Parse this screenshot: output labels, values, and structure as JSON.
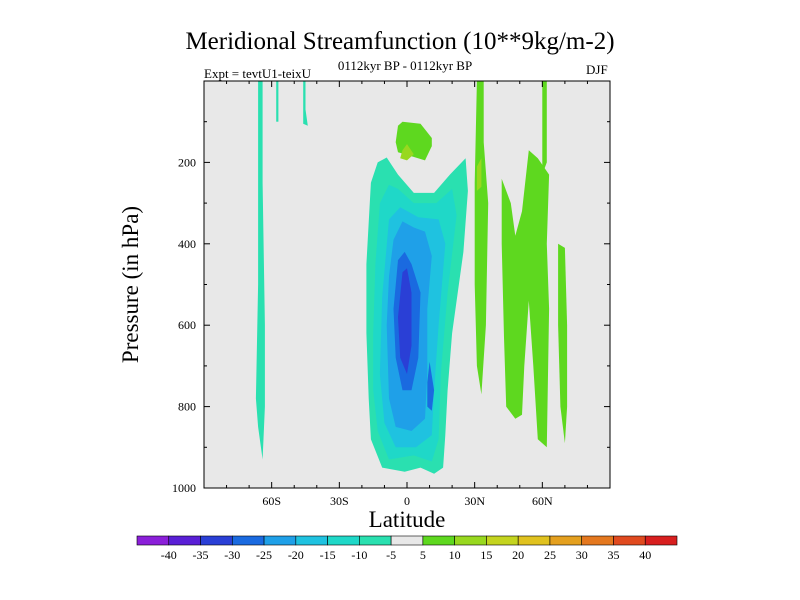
{
  "title": "Meridional Streamfunction (10**9kg/m-2)",
  "subtitle": "0112kyr BP - 0112kyr BP",
  "left_string": "Expt = tevtU1-teixU",
  "right_string": "DJF",
  "chart_data": {
    "type": "contour",
    "title": "Meridional Streamfunction (10**9kg/m-2)",
    "xlabel": "Latitude",
    "ylabel": "Pressure (in hPa)",
    "xlim": [
      -90,
      90
    ],
    "ylim": [
      1000,
      0
    ],
    "xticks": [
      {
        "value": -60,
        "label": "60S"
      },
      {
        "value": -30,
        "label": "30S"
      },
      {
        "value": 0,
        "label": "0"
      },
      {
        "value": 30,
        "label": "30N"
      },
      {
        "value": 60,
        "label": "60N"
      }
    ],
    "yticks": [
      {
        "value": 200,
        "label": "200"
      },
      {
        "value": 400,
        "label": "400"
      },
      {
        "value": 600,
        "label": "600"
      },
      {
        "value": 800,
        "label": "800"
      },
      {
        "value": 1000,
        "label": "1000"
      }
    ],
    "background_color": "#e8e8e8",
    "colorbar": {
      "levels": [
        -40,
        -35,
        -30,
        -25,
        -20,
        -15,
        -10,
        -5,
        5,
        10,
        15,
        20,
        25,
        30,
        35,
        40
      ],
      "colors": [
        "#8b1fd9",
        "#5a1fd6",
        "#2a3fd6",
        "#1a6ae0",
        "#1fa0e8",
        "#1fc2e0",
        "#1fd8c8",
        "#2ae0b0",
        "#e8e8e8",
        "#5ed81f",
        "#98d81f",
        "#c4d41f",
        "#e0c21f",
        "#e4a01f",
        "#e4781f",
        "#e04a1f",
        "#d81f1f"
      ]
    },
    "regions": [
      {
        "name": "neg-5-sh-strip",
        "level": -5,
        "points": [
          [
            -66,
            0
          ],
          [
            -64,
            0
          ],
          [
            -64,
            250
          ],
          [
            -63,
            600
          ],
          [
            -63,
            800
          ],
          [
            -64,
            930
          ],
          [
            -66,
            850
          ],
          [
            -67,
            780
          ],
          [
            -66,
            500
          ]
        ]
      },
      {
        "name": "neg-5-sh-thin",
        "level": -5,
        "points": [
          [
            -58,
            0
          ],
          [
            -57,
            0
          ],
          [
            -57,
            100
          ],
          [
            -58,
            100
          ]
        ]
      },
      {
        "name": "neg-5-sh-short",
        "level": -5,
        "points": [
          [
            -46,
            0
          ],
          [
            -45,
            0
          ],
          [
            -45,
            70
          ],
          [
            -44,
            110
          ],
          [
            -46,
            105
          ]
        ]
      },
      {
        "name": "neg-5-main-cell",
        "level": -5,
        "points": [
          [
            -16,
            250
          ],
          [
            -13,
            200
          ],
          [
            -9,
            188
          ],
          [
            -4,
            230
          ],
          [
            3,
            275
          ],
          [
            12,
            275
          ],
          [
            19,
            230
          ],
          [
            26,
            190
          ],
          [
            27,
            270
          ],
          [
            25,
            420
          ],
          [
            20,
            620
          ],
          [
            18,
            760
          ],
          [
            17,
            870
          ],
          [
            16,
            950
          ],
          [
            12,
            965
          ],
          [
            6,
            950
          ],
          [
            -1,
            960
          ],
          [
            -11,
            950
          ],
          [
            -16,
            880
          ],
          [
            -17,
            780
          ],
          [
            -18,
            620
          ],
          [
            -18,
            450
          ]
        ]
      },
      {
        "name": "neg-10",
        "level": -10,
        "points": [
          [
            -12,
            300
          ],
          [
            -8,
            255
          ],
          [
            -4,
            265
          ],
          [
            3,
            300
          ],
          [
            13,
            300
          ],
          [
            20,
            265
          ],
          [
            22,
            330
          ],
          [
            18,
            520
          ],
          [
            15,
            720
          ],
          [
            14,
            880
          ],
          [
            11,
            935
          ],
          [
            3,
            920
          ],
          [
            -8,
            930
          ],
          [
            -13,
            860
          ],
          [
            -15,
            760
          ],
          [
            -15,
            620
          ],
          [
            -14,
            450
          ]
        ]
      },
      {
        "name": "neg-15",
        "level": -15,
        "points": [
          [
            -8,
            340
          ],
          [
            -3,
            310
          ],
          [
            5,
            335
          ],
          [
            14,
            340
          ],
          [
            17,
            400
          ],
          [
            14,
            600
          ],
          [
            12,
            760
          ],
          [
            11,
            870
          ],
          [
            4,
            900
          ],
          [
            -5,
            900
          ],
          [
            -10,
            840
          ],
          [
            -12,
            720
          ],
          [
            -11,
            530
          ]
        ]
      },
      {
        "name": "neg-20",
        "level": -20,
        "points": [
          [
            -6,
            390
          ],
          [
            -2,
            345
          ],
          [
            3,
            360
          ],
          [
            8,
            370
          ],
          [
            11,
            430
          ],
          [
            9,
            560
          ],
          [
            9,
            720
          ],
          [
            8,
            830
          ],
          [
            2,
            860
          ],
          [
            -5,
            850
          ],
          [
            -8,
            780
          ],
          [
            -9,
            600
          ],
          [
            -8,
            480
          ]
        ]
      },
      {
        "name": "neg-25",
        "level": -25,
        "points": [
          [
            -4,
            440
          ],
          [
            -1,
            420
          ],
          [
            2,
            450
          ],
          [
            6,
            520
          ],
          [
            5,
            680
          ],
          [
            2,
            760
          ],
          [
            -2,
            760
          ],
          [
            -5,
            680
          ],
          [
            -6,
            560
          ]
        ]
      },
      {
        "name": "neg-25-lower",
        "level": -25,
        "points": [
          [
            10,
            690
          ],
          [
            12,
            760
          ],
          [
            11,
            810
          ],
          [
            9,
            800
          ],
          [
            9,
            740
          ]
        ]
      },
      {
        "name": "neg-30",
        "level": -30,
        "points": [
          [
            -2,
            470
          ],
          [
            0,
            460
          ],
          [
            2,
            520
          ],
          [
            2,
            650
          ],
          [
            0,
            720
          ],
          [
            -3,
            680
          ],
          [
            -4,
            580
          ]
        ]
      },
      {
        "name": "pos-5-upper",
        "level": 5,
        "points": [
          [
            -4,
            110
          ],
          [
            -2,
            100
          ],
          [
            6,
            105
          ],
          [
            11,
            140
          ],
          [
            11,
            160
          ],
          [
            8,
            195
          ],
          [
            2,
            185
          ],
          [
            -4,
            175
          ],
          [
            -5,
            150
          ]
        ]
      },
      {
        "name": "pos-10-upper",
        "level": 10,
        "points": [
          [
            -2,
            170
          ],
          [
            0,
            155
          ],
          [
            3,
            180
          ],
          [
            0,
            195
          ],
          [
            -3,
            190
          ]
        ]
      },
      {
        "name": "pos-5-30n-strip",
        "level": 5,
        "points": [
          [
            31,
            0
          ],
          [
            34,
            0
          ],
          [
            34,
            150
          ],
          [
            36,
            300
          ],
          [
            35,
            600
          ],
          [
            33,
            770
          ],
          [
            31,
            700
          ],
          [
            30,
            500
          ],
          [
            30,
            250
          ]
        ]
      },
      {
        "name": "pos-10-30n",
        "level": 10,
        "points": [
          [
            31,
            210
          ],
          [
            33,
            190
          ],
          [
            33,
            260
          ],
          [
            31,
            270
          ]
        ]
      },
      {
        "name": "pos-5-40n",
        "level": 5,
        "points": [
          [
            42,
            240
          ],
          [
            46,
            300
          ],
          [
            48,
            380
          ],
          [
            51,
            320
          ],
          [
            54,
            170
          ],
          [
            58,
            190
          ],
          [
            63,
            230
          ],
          [
            62,
            400
          ],
          [
            63,
            560
          ],
          [
            62,
            900
          ],
          [
            58,
            880
          ],
          [
            56,
            700
          ],
          [
            54,
            540
          ],
          [
            52,
            700
          ],
          [
            51,
            820
          ],
          [
            48,
            830
          ],
          [
            44,
            800
          ],
          [
            43,
            630
          ],
          [
            42,
            400
          ]
        ]
      },
      {
        "name": "pos-5-60n-thin",
        "level": 5,
        "points": [
          [
            60,
            0
          ],
          [
            62,
            0
          ],
          [
            62,
            200
          ],
          [
            60,
            230
          ]
        ]
      },
      {
        "name": "pos-5-70n",
        "level": 5,
        "points": [
          [
            67,
            400
          ],
          [
            70,
            410
          ],
          [
            71,
            600
          ],
          [
            71,
            800
          ],
          [
            70,
            890
          ],
          [
            68,
            800
          ],
          [
            67,
            600
          ]
        ]
      }
    ]
  }
}
